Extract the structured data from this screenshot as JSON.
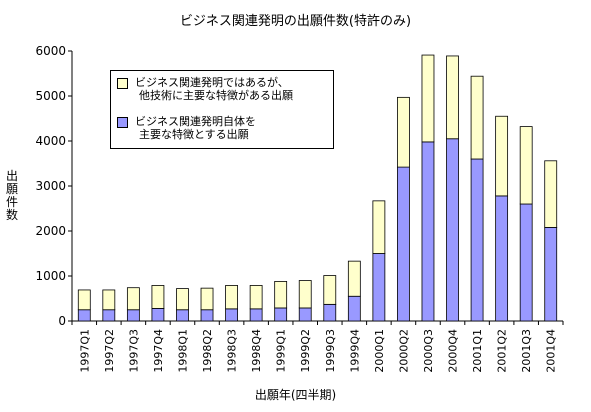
{
  "chart_data": {
    "type": "bar",
    "stacked": true,
    "title": "ビジネス関連発明の出願件数(特許のみ)",
    "xlabel": "出願年(四半期)",
    "ylabel": "出願件数",
    "ylim": [
      0,
      6000
    ],
    "yticks": [
      "0",
      "1000",
      "2000",
      "3000",
      "4000",
      "5000",
      "6000"
    ],
    "grid": false,
    "legend_position": "top-left",
    "categories": [
      "1997Q1",
      "1997Q2",
      "1997Q3",
      "1997Q4",
      "1998Q1",
      "1998Q2",
      "1998Q3",
      "1998Q4",
      "1999Q1",
      "1999Q2",
      "1999Q3",
      "1999Q4",
      "2000Q1",
      "2000Q2",
      "2000Q3",
      "2000Q4",
      "2001Q1",
      "2001Q2",
      "2001Q3",
      "2001Q4"
    ],
    "series": [
      {
        "name_line1": "ビジネス関連発明自体を",
        "name_line2": "主要な特徴とする出願",
        "color": "#9999ff",
        "values": [
          250,
          250,
          250,
          280,
          250,
          250,
          270,
          270,
          290,
          290,
          370,
          550,
          1500,
          3420,
          3980,
          4050,
          3600,
          2780,
          2600,
          2080
        ]
      },
      {
        "name_line1": "ビジネス関連発明ではあるが、",
        "name_line2": "他技術に主要な特徴がある出願",
        "color": "#ffffcc",
        "values": [
          440,
          440,
          490,
          510,
          470,
          480,
          520,
          520,
          590,
          610,
          640,
          780,
          1170,
          1550,
          1930,
          1840,
          1840,
          1770,
          1720,
          1480
        ]
      }
    ]
  }
}
